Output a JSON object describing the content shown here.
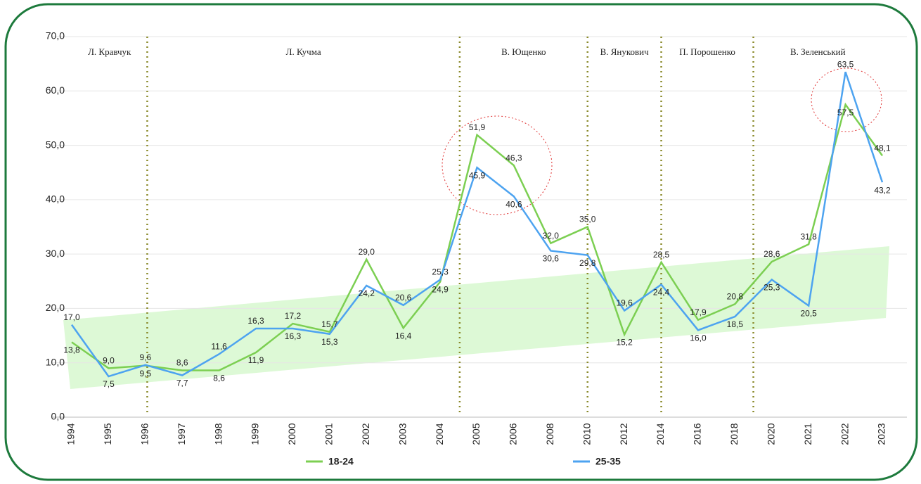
{
  "chart_data": {
    "type": "line",
    "categories": [
      "1994",
      "1995",
      "1996",
      "1997",
      "1998",
      "1999",
      "2000",
      "2001",
      "2002",
      "2003",
      "2004",
      "2005",
      "2006",
      "2008",
      "2010",
      "2012",
      "2014",
      "2016",
      "2018",
      "2020",
      "2021",
      "2022",
      "2023"
    ],
    "series": [
      {
        "name": "18-24",
        "color": "#7ccf52",
        "values": [
          13.8,
          9.0,
          9.5,
          8.6,
          8.6,
          11.9,
          17.2,
          15.7,
          29.0,
          16.4,
          24.9,
          51.9,
          46.3,
          32.0,
          35.0,
          15.2,
          28.5,
          17.9,
          20.8,
          28.6,
          31.8,
          57.5,
          48.1
        ],
        "value_labels": [
          "13,8",
          "9,0",
          "9,5",
          "8,6",
          "8,6",
          "11,9",
          "17,2",
          "15,7",
          "29,0",
          "16,4",
          "24,9",
          "51,9",
          "46,3",
          "32,0",
          "35,0",
          "15,2",
          "28,5",
          "17,9",
          "20,8",
          "28,6",
          "31,8",
          "57,5",
          "48,1"
        ]
      },
      {
        "name": "25-35",
        "color": "#4da3f0",
        "values": [
          17.0,
          7.5,
          9.6,
          7.7,
          11.6,
          16.3,
          16.3,
          15.3,
          24.2,
          20.6,
          25.3,
          45.9,
          40.6,
          30.6,
          29.8,
          19.6,
          24.4,
          16.0,
          18.5,
          25.3,
          20.5,
          63.5,
          43.2
        ],
        "value_labels": [
          "17,0",
          "7,5",
          "9,6",
          "7,7",
          "11,6",
          "16,3",
          "16,3",
          "15,3",
          "24,2",
          "20,6",
          "25,3",
          "45,9",
          "40,6",
          "30,6",
          "29,8",
          "19,6",
          "24,4",
          "16,0",
          "18,5",
          "25,3",
          "20,5",
          "63,5",
          "43,2"
        ]
      }
    ],
    "ylim": [
      0,
      70
    ],
    "yticks": [
      {
        "value": 0,
        "label": "0,0"
      },
      {
        "value": 10,
        "label": "10,0"
      },
      {
        "value": 20,
        "label": "20,0"
      },
      {
        "value": 30,
        "label": "30,0"
      },
      {
        "value": 40,
        "label": "40,0"
      },
      {
        "value": 50,
        "label": "50,0"
      },
      {
        "value": 60,
        "label": "60,0"
      },
      {
        "value": 70,
        "label": "70,0"
      }
    ],
    "grid": true,
    "legend": "bottom",
    "periods": [
      "Л. Кравчук",
      "Л. Кучма",
      "В. Ющенко",
      "В. Янукович",
      "П. Порошенко",
      "В. Зеленський"
    ]
  }
}
